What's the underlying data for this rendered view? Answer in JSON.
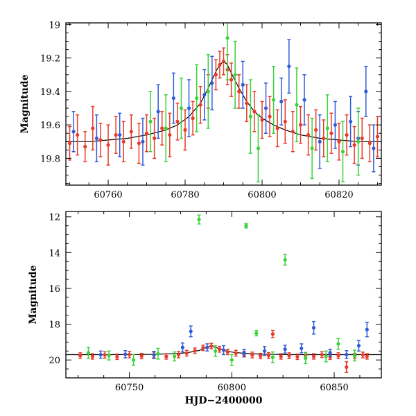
{
  "chart_data": [
    {
      "type": "scatter",
      "panel": "top",
      "xlim": [
        60749,
        60831
      ],
      "ylim": [
        19.96,
        18.99
      ],
      "y_inverted": true,
      "xticks": [
        60760,
        60780,
        60800,
        60820
      ],
      "xtick_labels": [
        "60760",
        "60780",
        "60800",
        "60820"
      ],
      "yticks": [
        19.0,
        19.2,
        19.4,
        19.6,
        19.8
      ],
      "ytick_labels": [
        "19",
        "19.2",
        "19.4",
        "19.6",
        "19.8"
      ],
      "xlabel": "",
      "ylabel": "Magnitude",
      "grid": false,
      "series": [
        {
          "color": "#e83a28",
          "points": [
            [
              60750,
              19.71,
              0.1
            ],
            [
              60752,
              19.66,
              0.12
            ],
            [
              60754,
              19.73,
              0.09
            ],
            [
              60756,
              19.62,
              0.13
            ],
            [
              60758,
              19.69,
              0.1
            ],
            [
              60760,
              19.72,
              0.12
            ],
            [
              60762,
              19.66,
              0.11
            ],
            [
              60764,
              19.7,
              0.12
            ],
            [
              60766,
              19.64,
              0.1
            ],
            [
              60768,
              19.71,
              0.12
            ],
            [
              60770,
              19.65,
              0.11
            ],
            [
              60772,
              19.68,
              0.12
            ],
            [
              60774,
              19.62,
              0.1
            ],
            [
              60776,
              19.66,
              0.13
            ],
            [
              60778,
              19.58,
              0.11
            ],
            [
              60780,
              19.63,
              0.12
            ],
            [
              60782,
              19.56,
              0.1
            ],
            [
              60784,
              19.48,
              0.11
            ],
            [
              60786,
              19.4,
              0.1
            ],
            [
              60788,
              19.3,
              0.09
            ],
            [
              60789,
              19.24,
              0.08
            ],
            [
              60790,
              19.22,
              0.08
            ],
            [
              60791,
              19.27,
              0.09
            ],
            [
              60792,
              19.33,
              0.1
            ],
            [
              60794,
              19.4,
              0.1
            ],
            [
              60796,
              19.47,
              0.11
            ],
            [
              60798,
              19.52,
              0.12
            ],
            [
              60800,
              19.57,
              0.11
            ],
            [
              60802,
              19.55,
              0.12
            ],
            [
              60804,
              19.62,
              0.11
            ],
            [
              60806,
              19.58,
              0.13
            ],
            [
              60808,
              19.64,
              0.12
            ],
            [
              60810,
              19.6,
              0.11
            ],
            [
              60812,
              19.66,
              0.12
            ],
            [
              60814,
              19.63,
              0.12
            ],
            [
              60816,
              19.68,
              0.11
            ],
            [
              60818,
              19.65,
              0.12
            ],
            [
              60820,
              19.7,
              0.11
            ],
            [
              60822,
              19.66,
              0.12
            ],
            [
              60824,
              19.72,
              0.11
            ],
            [
              60826,
              19.68,
              0.12
            ],
            [
              60828,
              19.71,
              0.11
            ],
            [
              60830,
              19.67,
              0.12
            ]
          ]
        },
        {
          "color": "#2f5bd8",
          "points": [
            [
              60751,
              19.64,
              0.12
            ],
            [
              60757,
              19.68,
              0.14
            ],
            [
              60763,
              19.66,
              0.13
            ],
            [
              60769,
              19.7,
              0.14
            ],
            [
              60773,
              19.52,
              0.16
            ],
            [
              60777,
              19.44,
              0.15
            ],
            [
              60781,
              19.5,
              0.17
            ],
            [
              60785,
              19.42,
              0.15
            ],
            [
              60787,
              19.35,
              0.16
            ],
            [
              60795,
              19.36,
              0.14
            ],
            [
              60801,
              19.5,
              0.15
            ],
            [
              60805,
              19.46,
              0.14
            ],
            [
              60807,
              19.25,
              0.16
            ],
            [
              60811,
              19.45,
              0.15
            ],
            [
              60815,
              19.7,
              0.16
            ],
            [
              60819,
              19.6,
              0.14
            ],
            [
              60823,
              19.58,
              0.15
            ],
            [
              60825,
              19.68,
              0.16
            ],
            [
              60827,
              19.4,
              0.15
            ],
            [
              60829,
              19.74,
              0.14
            ]
          ]
        },
        {
          "color": "#3ad33a",
          "points": [
            [
              60771,
              19.58,
              0.18
            ],
            [
              60775,
              19.62,
              0.2
            ],
            [
              60779,
              19.5,
              0.18
            ],
            [
              60783,
              19.44,
              0.2
            ],
            [
              60786,
              19.4,
              0.22
            ],
            [
              60791,
              19.08,
              0.25
            ],
            [
              60793,
              19.3,
              0.2
            ],
            [
              60797,
              19.55,
              0.22
            ],
            [
              60799,
              19.74,
              0.2
            ],
            [
              60803,
              19.45,
              0.2
            ],
            [
              60809,
              19.48,
              0.22
            ],
            [
              60813,
              19.74,
              0.18
            ],
            [
              60817,
              19.62,
              0.2
            ],
            [
              60821,
              19.76,
              0.18
            ],
            [
              60825,
              19.7,
              0.2
            ]
          ]
        }
      ],
      "model_curve": {
        "color": "#000000",
        "x": [
          60749,
          60755,
          60760,
          60765,
          60770,
          60775,
          60778,
          60781,
          60784,
          60786,
          60788,
          60789,
          60790,
          60791,
          60792,
          60794,
          60796,
          60798,
          60800,
          60803,
          60806,
          60810,
          60815,
          60820,
          60825,
          60831
        ],
        "y": [
          19.7,
          19.7,
          19.69,
          19.68,
          19.66,
          19.63,
          19.6,
          19.55,
          19.47,
          19.38,
          19.28,
          19.24,
          19.22,
          19.24,
          19.29,
          19.38,
          19.46,
          19.52,
          19.56,
          19.6,
          19.63,
          19.66,
          19.68,
          19.69,
          19.7,
          19.7
        ]
      }
    },
    {
      "type": "scatter",
      "panel": "bottom",
      "xlim": [
        60719,
        60873
      ],
      "ylim": [
        21.0,
        11.7
      ],
      "y_inverted": true,
      "xticks": [
        60750,
        60800,
        60850
      ],
      "xtick_labels": [
        "60750",
        "60800",
        "60850"
      ],
      "yticks": [
        12,
        14,
        16,
        18,
        20
      ],
      "ytick_labels": [
        "12",
        "14",
        "16",
        "18",
        "20"
      ],
      "xlabel": "HJD−2400000",
      "ylabel": "Magnitude",
      "grid": false,
      "series": [
        {
          "color": "#e83a28",
          "points": [
            [
              60726,
              19.75,
              0.15
            ],
            [
              60732,
              19.8,
              0.15
            ],
            [
              60738,
              19.72,
              0.18
            ],
            [
              60744,
              19.82,
              0.15
            ],
            [
              60750,
              19.7,
              0.18
            ],
            [
              60756,
              19.78,
              0.15
            ],
            [
              60762,
              19.72,
              0.16
            ],
            [
              60768,
              19.8,
              0.15
            ],
            [
              60774,
              19.7,
              0.18
            ],
            [
              60778,
              19.62,
              0.16
            ],
            [
              60782,
              19.48,
              0.15
            ],
            [
              60786,
              19.32,
              0.15
            ],
            [
              60790,
              19.22,
              0.15
            ],
            [
              60794,
              19.4,
              0.16
            ],
            [
              60798,
              19.55,
              0.15
            ],
            [
              60802,
              19.62,
              0.16
            ],
            [
              60806,
              19.68,
              0.15
            ],
            [
              60810,
              19.72,
              0.16
            ],
            [
              60814,
              19.78,
              0.15
            ],
            [
              60818,
              19.75,
              0.16
            ],
            [
              60820,
              18.55,
              0.2
            ],
            [
              60824,
              19.8,
              0.15
            ],
            [
              60828,
              19.76,
              0.16
            ],
            [
              60832,
              19.82,
              0.15
            ],
            [
              60836,
              19.74,
              0.16
            ],
            [
              60840,
              19.8,
              0.15
            ],
            [
              60844,
              19.7,
              0.16
            ],
            [
              60848,
              19.82,
              0.15
            ],
            [
              60852,
              19.76,
              0.16
            ],
            [
              60856,
              20.4,
              0.3
            ],
            [
              60860,
              19.78,
              0.15
            ],
            [
              60864,
              19.72,
              0.16
            ],
            [
              60866,
              19.8,
              0.15
            ]
          ]
        },
        {
          "color": "#2f5bd8",
          "points": [
            [
              60736,
              19.7,
              0.2
            ],
            [
              60748,
              19.68,
              0.2
            ],
            [
              60762,
              19.72,
              0.2
            ],
            [
              60776,
              19.3,
              0.25
            ],
            [
              60780,
              18.4,
              0.3
            ],
            [
              60788,
              19.3,
              0.2
            ],
            [
              60796,
              19.45,
              0.25
            ],
            [
              60806,
              19.6,
              0.2
            ],
            [
              60816,
              19.5,
              0.25
            ],
            [
              60826,
              19.4,
              0.22
            ],
            [
              60834,
              19.35,
              0.25
            ],
            [
              60840,
              18.2,
              0.35
            ],
            [
              60848,
              19.6,
              0.2
            ],
            [
              60856,
              19.7,
              0.22
            ],
            [
              60862,
              19.2,
              0.3
            ],
            [
              60866,
              18.3,
              0.4
            ]
          ]
        },
        {
          "color": "#3ad33a",
          "points": [
            [
              60730,
              19.6,
              0.3
            ],
            [
              60740,
              19.75,
              0.25
            ],
            [
              60752,
              20.0,
              0.3
            ],
            [
              60764,
              19.65,
              0.3
            ],
            [
              60772,
              19.8,
              0.25
            ],
            [
              60784,
              12.15,
              0.25
            ],
            [
              60792,
              19.5,
              0.3
            ],
            [
              60800,
              20.0,
              0.3
            ],
            [
              60807,
              12.5,
              0.12
            ],
            [
              60812,
              18.5,
              0.15
            ],
            [
              60820,
              19.85,
              0.3
            ],
            [
              60826,
              14.4,
              0.3
            ],
            [
              60836,
              19.9,
              0.3
            ],
            [
              60846,
              19.8,
              0.3
            ],
            [
              60852,
              19.1,
              0.3
            ],
            [
              60860,
              19.75,
              0.3
            ]
          ]
        }
      ],
      "model_curve": {
        "color": "#000000",
        "x": [
          60719,
          60740,
          60760,
          60770,
          60778,
          60784,
          60788,
          60790,
          60792,
          60796,
          60800,
          60806,
          60815,
          60830,
          60850,
          60873
        ],
        "y": [
          19.7,
          19.7,
          19.69,
          19.66,
          19.6,
          19.47,
          19.28,
          19.22,
          19.29,
          19.46,
          19.56,
          19.63,
          19.68,
          19.7,
          19.7,
          19.7
        ]
      }
    }
  ]
}
